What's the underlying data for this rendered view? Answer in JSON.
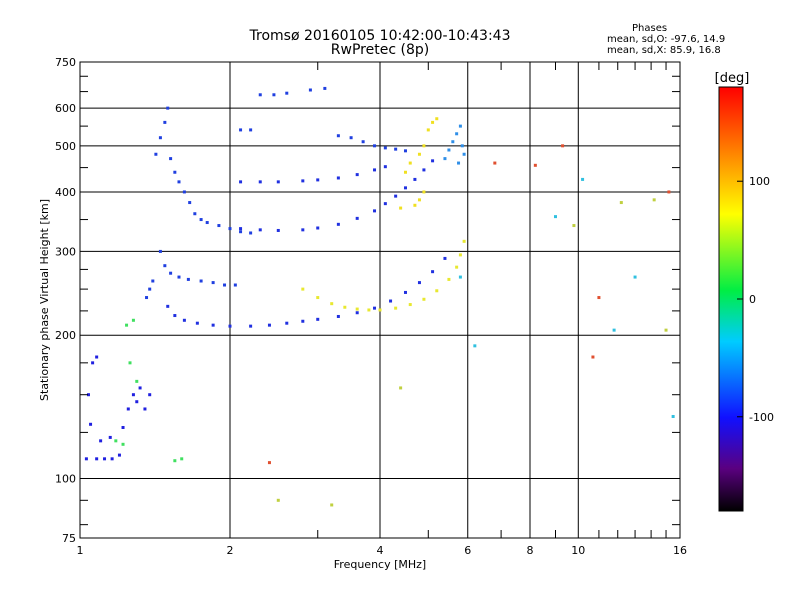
{
  "header": {
    "title_line1": "Tromsø 20160105 10:42:00-10:43:43",
    "title_line2": "RwPretec (8p)",
    "stats_heading": "Phases",
    "stats_o": "mean, sd,O: -97.6, 14.9",
    "stats_x": "mean, sd,X:  85.9, 16.8"
  },
  "chart_data": {
    "type": "scatter",
    "xlabel": "Frequency [MHz]",
    "ylabel": "Stationary phase Virtual Height [km]",
    "xscale": "log",
    "yscale": "log",
    "xlim": [
      1,
      16
    ],
    "ylim": [
      75,
      750
    ],
    "x_tick_labels": [
      "1",
      "2",
      "4",
      "6",
      "8",
      "10",
      "16"
    ],
    "x_tick_values": [
      1,
      2,
      4,
      6,
      8,
      10,
      16
    ],
    "x_major_grid": [
      1,
      2,
      4,
      6,
      8,
      10,
      16
    ],
    "x_minor_ticks": [
      3,
      5,
      7,
      9,
      11,
      12,
      13,
      14,
      15
    ],
    "y_tick_labels": [
      "75",
      "100",
      "200",
      "300",
      "400",
      "500",
      "600",
      "750"
    ],
    "y_tick_values": [
      75,
      100,
      200,
      300,
      400,
      500,
      600,
      750
    ],
    "y_minor_ticks": [
      80,
      90,
      125,
      150,
      175,
      225,
      250,
      275,
      350,
      450,
      550,
      650,
      700
    ],
    "colorbar": {
      "label": "[deg]",
      "range": [
        -180,
        180
      ],
      "tick_labels": [
        "100",
        "0",
        "-100"
      ],
      "tick_values": [
        100,
        0,
        -100
      ]
    },
    "series": [
      {
        "color": "#2020e0",
        "points": [
          [
            1.03,
            110
          ],
          [
            1.08,
            110
          ],
          [
            1.12,
            110
          ],
          [
            1.16,
            110
          ],
          [
            1.2,
            112
          ],
          [
            1.05,
            130
          ],
          [
            1.1,
            120
          ],
          [
            1.15,
            122
          ],
          [
            1.22,
            128
          ],
          [
            1.25,
            140
          ],
          [
            1.28,
            150
          ],
          [
            1.32,
            155
          ],
          [
            1.04,
            150
          ],
          [
            1.06,
            175
          ],
          [
            1.08,
            180
          ],
          [
            1.3,
            145
          ],
          [
            1.35,
            140
          ],
          [
            1.38,
            150
          ]
        ]
      },
      {
        "color": "#2040e0",
        "points": [
          [
            1.42,
            480
          ],
          [
            1.45,
            520
          ],
          [
            1.48,
            560
          ],
          [
            1.5,
            600
          ],
          [
            1.52,
            470
          ],
          [
            1.55,
            440
          ],
          [
            1.58,
            420
          ],
          [
            1.62,
            400
          ],
          [
            1.66,
            380
          ],
          [
            1.7,
            360
          ],
          [
            1.75,
            350
          ],
          [
            1.8,
            345
          ],
          [
            1.9,
            340
          ],
          [
            2.0,
            335
          ],
          [
            2.1,
            330
          ],
          [
            2.2,
            328
          ]
        ]
      },
      {
        "color": "#2040e0",
        "points": [
          [
            1.45,
            300
          ],
          [
            1.48,
            280
          ],
          [
            1.52,
            270
          ],
          [
            1.58,
            265
          ],
          [
            1.65,
            262
          ],
          [
            1.75,
            260
          ],
          [
            1.85,
            258
          ],
          [
            1.95,
            255
          ],
          [
            2.05,
            255
          ],
          [
            1.4,
            260
          ],
          [
            1.38,
            250
          ],
          [
            1.36,
            240
          ]
        ]
      },
      {
        "color": "#2030e0",
        "points": [
          [
            1.5,
            230
          ],
          [
            1.55,
            220
          ],
          [
            1.62,
            215
          ],
          [
            1.72,
            212
          ],
          [
            1.85,
            210
          ],
          [
            2.0,
            209
          ],
          [
            2.2,
            209
          ],
          [
            2.4,
            210
          ],
          [
            2.6,
            212
          ],
          [
            2.8,
            214
          ],
          [
            3.0,
            216
          ],
          [
            3.3,
            219
          ],
          [
            3.6,
            223
          ],
          [
            3.9,
            228
          ],
          [
            4.2,
            236
          ],
          [
            4.5,
            246
          ],
          [
            4.8,
            258
          ],
          [
            5.1,
            272
          ],
          [
            5.4,
            290
          ]
        ]
      },
      {
        "color": "#2030e0",
        "points": [
          [
            2.1,
            335
          ],
          [
            2.3,
            333
          ],
          [
            2.5,
            332
          ],
          [
            2.8,
            333
          ],
          [
            3.0,
            336
          ],
          [
            3.3,
            342
          ],
          [
            3.6,
            352
          ],
          [
            3.9,
            365
          ],
          [
            4.1,
            378
          ],
          [
            4.3,
            392
          ],
          [
            4.5,
            408
          ],
          [
            4.7,
            425
          ],
          [
            4.9,
            445
          ],
          [
            5.1,
            465
          ]
        ]
      },
      {
        "color": "#2030e0",
        "points": [
          [
            2.1,
            420
          ],
          [
            2.3,
            420
          ],
          [
            2.5,
            420
          ],
          [
            2.8,
            422
          ],
          [
            3.0,
            424
          ],
          [
            3.3,
            428
          ],
          [
            3.6,
            435
          ],
          [
            3.9,
            445
          ],
          [
            4.1,
            452
          ]
        ]
      },
      {
        "color": "#2040e0",
        "points": [
          [
            2.1,
            540
          ],
          [
            2.2,
            540
          ],
          [
            2.3,
            640
          ],
          [
            2.45,
            640
          ],
          [
            2.6,
            645
          ],
          [
            2.9,
            655
          ],
          [
            3.1,
            660
          ],
          [
            3.3,
            525
          ],
          [
            3.5,
            520
          ],
          [
            3.7,
            510
          ],
          [
            3.9,
            500
          ],
          [
            4.1,
            495
          ],
          [
            4.3,
            492
          ],
          [
            4.5,
            488
          ]
        ]
      },
      {
        "color": "#2f8fe8",
        "points": [
          [
            5.4,
            470
          ],
          [
            5.5,
            490
          ],
          [
            5.6,
            510
          ],
          [
            5.7,
            530
          ],
          [
            5.8,
            550
          ],
          [
            5.85,
            500
          ],
          [
            5.9,
            480
          ],
          [
            5.75,
            460
          ]
        ]
      },
      {
        "color": "#f0e020",
        "points": [
          [
            5.0,
            540
          ],
          [
            5.1,
            560
          ],
          [
            5.2,
            570
          ],
          [
            4.9,
            500
          ],
          [
            4.8,
            480
          ],
          [
            4.6,
            460
          ],
          [
            4.5,
            440
          ],
          [
            4.7,
            375
          ],
          [
            4.8,
            385
          ],
          [
            4.9,
            400
          ],
          [
            4.4,
            370
          ]
        ]
      },
      {
        "color": "#e8e830",
        "points": [
          [
            2.8,
            250
          ],
          [
            3.0,
            240
          ],
          [
            3.2,
            233
          ],
          [
            3.4,
            229
          ],
          [
            3.6,
            227
          ],
          [
            3.8,
            226
          ],
          [
            4.0,
            226
          ],
          [
            4.3,
            228
          ],
          [
            4.6,
            232
          ],
          [
            4.9,
            238
          ],
          [
            5.2,
            248
          ],
          [
            5.5,
            262
          ],
          [
            5.7,
            278
          ],
          [
            5.8,
            295
          ],
          [
            5.9,
            315
          ]
        ]
      },
      {
        "color": "#40e060",
        "points": [
          [
            1.18,
            120
          ],
          [
            1.22,
            118
          ],
          [
            1.26,
            175
          ],
          [
            1.3,
            160
          ],
          [
            1.24,
            210
          ],
          [
            1.28,
            215
          ],
          [
            1.55,
            109
          ],
          [
            1.6,
            110
          ]
        ]
      },
      {
        "color": "#e05030",
        "points": [
          [
            2.4,
            108
          ],
          [
            6.8,
            460
          ],
          [
            8.2,
            455
          ],
          [
            9.3,
            500
          ],
          [
            10.7,
            180
          ],
          [
            11.0,
            240
          ],
          [
            15.2,
            400
          ]
        ]
      },
      {
        "color": "#30c0e0",
        "points": [
          [
            5.8,
            265
          ],
          [
            6.2,
            190
          ],
          [
            9.0,
            355
          ],
          [
            10.2,
            425
          ],
          [
            11.8,
            205
          ],
          [
            13.0,
            265
          ],
          [
            15.5,
            135
          ]
        ]
      },
      {
        "color": "#c0d040",
        "points": [
          [
            2.5,
            90
          ],
          [
            3.2,
            88
          ],
          [
            4.4,
            155
          ],
          [
            9.8,
            340
          ],
          [
            12.2,
            380
          ],
          [
            14.2,
            385
          ],
          [
            15.0,
            205
          ]
        ]
      }
    ]
  }
}
